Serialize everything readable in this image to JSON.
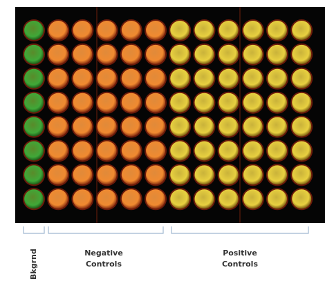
{
  "groups": [
    {
      "lines": [
        "Bkgrnd"
      ]
    },
    {
      "lines": [
        "Negative",
        "Controls"
      ]
    },
    {
      "lines": [
        "Positive",
        "Controls"
      ]
    }
  ]
}
